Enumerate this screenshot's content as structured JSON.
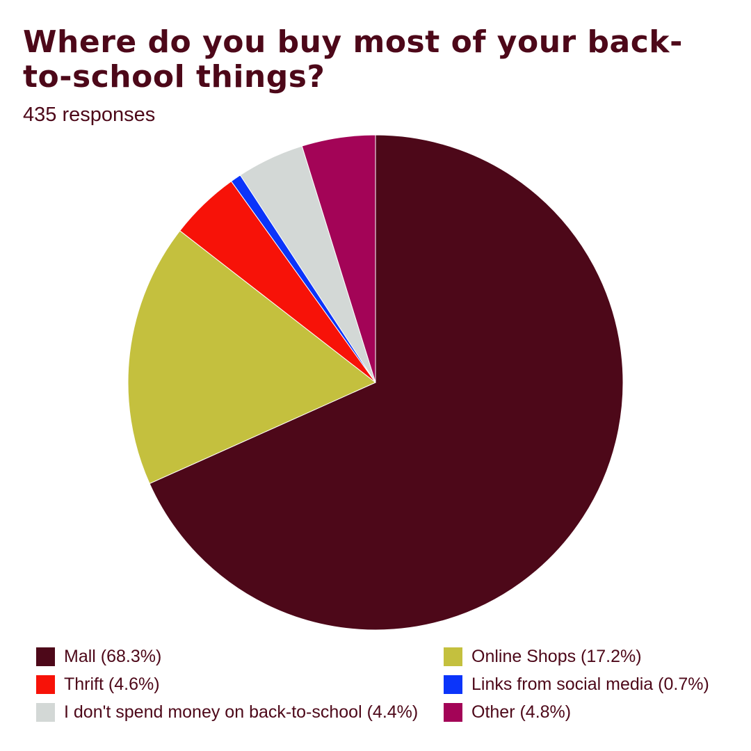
{
  "title": "Where do you buy most of your back-to-school things?",
  "subtitle": "435 responses",
  "chart_data": {
    "type": "pie",
    "title": "Where do you buy most of your back-to-school things?",
    "subtitle": "435 responses",
    "slices": [
      {
        "label": "Mall (68.3%)",
        "category": "Mall",
        "value": 68.3,
        "color": "#4d0819"
      },
      {
        "label": "Online Shops (17.2%)",
        "category": "Online Shops",
        "value": 17.2,
        "color": "#c4c03e"
      },
      {
        "label": "Thrift (4.6%)",
        "category": "Thrift",
        "value": 4.6,
        "color": "#f71208"
      },
      {
        "label": "Links from social media (0.7%)",
        "category": "Links from social media",
        "value": 0.7,
        "color": "#0b34fa"
      },
      {
        "label": "I don't spend money on back-to-school (4.4%)",
        "category": "I don't spend money on back-to-school",
        "value": 4.4,
        "color": "#d3d8d6"
      },
      {
        "label": "Other (4.8%)",
        "category": "Other",
        "value": 4.8,
        "color": "#a30457"
      }
    ],
    "start_angle": "12 o'clock",
    "direction": "clockwise",
    "legend_position": "bottom"
  },
  "legend": {
    "items": [
      {
        "label": "Mall (68.3%)",
        "color": "#4d0819"
      },
      {
        "label": "Online Shops (17.2%)",
        "color": "#c4c03e"
      },
      {
        "label": "Thrift (4.6%)",
        "color": "#f71208"
      },
      {
        "label": "Links from social media (0.7%)",
        "color": "#0b34fa"
      },
      {
        "label": "I don't spend money on back-to-school (4.4%)",
        "color": "#d3d8d6"
      },
      {
        "label": "Other (4.8%)",
        "color": "#a30457"
      }
    ]
  }
}
